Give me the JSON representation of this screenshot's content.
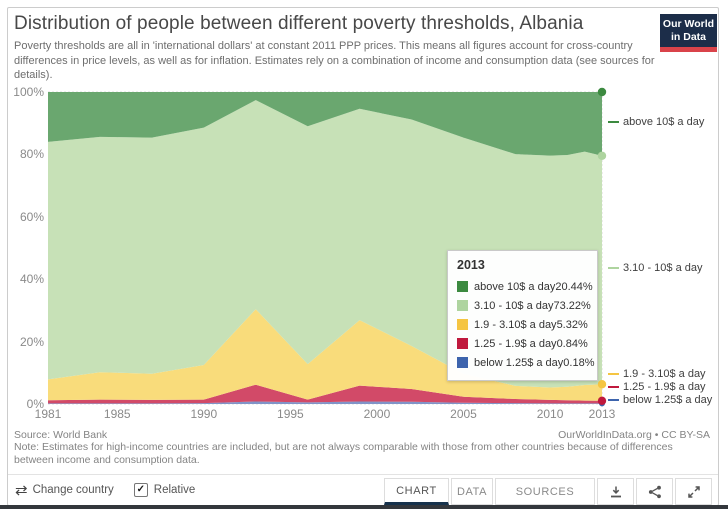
{
  "header": {
    "title": "Distribution of people between different poverty thresholds, Albania",
    "subtitle": "Poverty thresholds are all in 'international dollars' at constant 2011 PPP prices. This means all figures account for cross-country differences in price levels, as well as for inflation. Estimates rely on a combination of income and consumption data (see sources for details).",
    "logo": {
      "line1": "Our World",
      "line2": "in Data",
      "bg": "#1c2d49",
      "stripe": "#d9434a"
    }
  },
  "chart_data": {
    "type": "area",
    "stacked": true,
    "relative": true,
    "title": "Distribution of people between different poverty thresholds, Albania",
    "x": [
      1981,
      1984,
      1987,
      1990,
      1993,
      1996,
      1999,
      2002,
      2005,
      2008,
      2010,
      2011,
      2012,
      2013
    ],
    "xticks": [
      1981,
      1985,
      1990,
      1995,
      2000,
      2005,
      2010,
      2013
    ],
    "yticks": [
      0,
      20,
      40,
      60,
      80,
      100
    ],
    "ytick_labels": [
      "0%",
      "20%",
      "40%",
      "60%",
      "80%",
      "100%"
    ],
    "ylim": [
      0,
      100
    ],
    "grid": "dashed",
    "legend_position": "right",
    "series": [
      {
        "key": "below-1-25",
        "label": "below 1.25$ a day",
        "color": "#3d64ad",
        "area_color": "#8094c8",
        "values": [
          0.2,
          0.2,
          0.2,
          0.3,
          0.8,
          0.5,
          0.8,
          0.7,
          0.4,
          0.3,
          0.2,
          0.2,
          0.2,
          0.18
        ]
      },
      {
        "key": "1-25-1-9",
        "label": "1.25 - 1.9$ a day",
        "color": "#c0193d",
        "area_color": "#d24a68",
        "values": [
          1.0,
          1.2,
          1.1,
          1.1,
          5.4,
          0.9,
          5.1,
          4.1,
          1.9,
          1.3,
          1.1,
          1.0,
          0.9,
          0.84
        ]
      },
      {
        "key": "1-9-3-10",
        "label": "1.9 - 3.10$ a day",
        "color": "#f5c542",
        "area_color": "#f9dc7b",
        "values": [
          6.7,
          8.8,
          8.4,
          11.1,
          24.2,
          11.4,
          21.0,
          13.8,
          7.4,
          4.2,
          4.0,
          4.3,
          5.0,
          5.32
        ]
      },
      {
        "key": "3-10-10",
        "label": "3.10 - 10$ a day",
        "color": "#aed49f",
        "area_color": "#c7e1b7",
        "values": [
          76.1,
          75.4,
          75.7,
          76.1,
          67.0,
          76.2,
          67.7,
          72.6,
          75.7,
          74.3,
          74.3,
          74.3,
          74.8,
          73.22
        ]
      },
      {
        "key": "above-10",
        "label": "above 10$ a day",
        "color": "#3c8a40",
        "area_color": "#6aa76f",
        "values": [
          16.0,
          14.4,
          14.6,
          11.4,
          2.6,
          11.0,
          5.4,
          8.8,
          14.6,
          19.9,
          20.4,
          20.2,
          19.1,
          20.44
        ]
      }
    ],
    "end_labels": [
      {
        "label": "above 10$ a day",
        "color": "#3c8a40",
        "pct": 90.4
      },
      {
        "label": "3.10 - 10$ a day",
        "color": "#aed49f",
        "pct": 43.6
      },
      {
        "label": "1.9 - 3.10$ a day",
        "color": "#f5c542",
        "pct": 9.6
      },
      {
        "label": "1.25 - 1.9$ a day",
        "color": "#c0193d",
        "pct": 5.4
      },
      {
        "label": "below 1.25$ a day",
        "color": "#3d64ad",
        "pct": 1.3
      }
    ]
  },
  "tooltip": {
    "year": "2013",
    "rows": [
      {
        "label": "above 10$ a day",
        "value": "20.44%",
        "color": "#3c8a40"
      },
      {
        "label": "3.10 - 10$ a day",
        "value": "73.22%",
        "color": "#aed49f"
      },
      {
        "label": "1.9 - 3.10$ a day",
        "value": "5.32%",
        "color": "#f5c542"
      },
      {
        "label": "1.25 - 1.9$ a day",
        "value": "0.84%",
        "color": "#c0193d"
      },
      {
        "label": "below 1.25$ a day",
        "value": "0.18%",
        "color": "#3d64ad"
      }
    ]
  },
  "footer": {
    "source": "Source: World Bank",
    "credit": "OurWorldInData.org • CC BY-SA",
    "note": "Note: Estimates for high-income countries are included, but are not always comparable with those from other countries because of differences between income and consumption data."
  },
  "toolbar": {
    "change_country": "Change country",
    "change_country_icon": "⇄",
    "relative_label": "Relative",
    "relative_checked": true,
    "check_glyph": "✓",
    "tabs": [
      "CHART",
      "DATA",
      "SOURCES"
    ],
    "active_tab": "CHART",
    "active_tab_underline": "#16324c",
    "icons": [
      "download-icon",
      "share-icon",
      "fullscreen-icon"
    ]
  }
}
